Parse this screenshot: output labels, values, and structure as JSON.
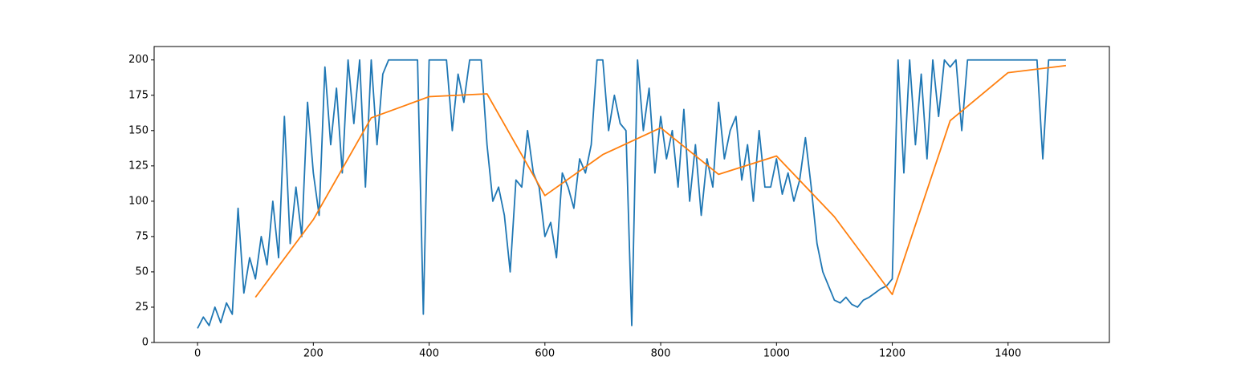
{
  "chart_data": {
    "type": "line",
    "xlim": [
      -75,
      1575
    ],
    "xticks": [
      0,
      200,
      400,
      600,
      800,
      1000,
      1200,
      1400
    ],
    "ylim": [
      0,
      209.5
    ],
    "yticks": [
      0,
      25,
      50,
      75,
      100,
      125,
      150,
      175,
      200
    ],
    "series": [
      {
        "color": "#1f77b4",
        "x": [
          0,
          10,
          20,
          30,
          40,
          50,
          60,
          70,
          80,
          90,
          100,
          110,
          120,
          130,
          140,
          150,
          160,
          170,
          180,
          190,
          200,
          210,
          220,
          230,
          240,
          250,
          260,
          270,
          280,
          290,
          300,
          310,
          320,
          330,
          340,
          350,
          360,
          370,
          380,
          390,
          400,
          410,
          420,
          430,
          440,
          450,
          460,
          470,
          480,
          490,
          500,
          510,
          520,
          530,
          540,
          550,
          560,
          570,
          580,
          590,
          600,
          610,
          620,
          630,
          640,
          650,
          660,
          670,
          680,
          690,
          700,
          710,
          720,
          730,
          740,
          750,
          760,
          770,
          780,
          790,
          800,
          810,
          820,
          830,
          840,
          850,
          860,
          870,
          880,
          890,
          900,
          910,
          920,
          930,
          940,
          950,
          960,
          970,
          980,
          990,
          1000,
          1010,
          1020,
          1030,
          1040,
          1050,
          1060,
          1070,
          1080,
          1090,
          1100,
          1110,
          1120,
          1130,
          1140,
          1150,
          1160,
          1170,
          1180,
          1190,
          1200,
          1210,
          1220,
          1230,
          1240,
          1250,
          1260,
          1270,
          1280,
          1290,
          1300,
          1310,
          1320,
          1330,
          1340,
          1350,
          1360,
          1370,
          1380,
          1390,
          1400,
          1410,
          1420,
          1430,
          1440,
          1450,
          1460,
          1470,
          1480,
          1490,
          1500
        ],
        "values": [
          10,
          18,
          12,
          25,
          14,
          28,
          20,
          95,
          35,
          60,
          45,
          75,
          55,
          100,
          60,
          160,
          70,
          110,
          75,
          170,
          120,
          90,
          195,
          140,
          180,
          120,
          200,
          155,
          200,
          110,
          200,
          140,
          190,
          200,
          200,
          200,
          200,
          200,
          200,
          20,
          200,
          200,
          200,
          200,
          150,
          190,
          170,
          200,
          200,
          200,
          140,
          100,
          110,
          90,
          50,
          115,
          110,
          150,
          120,
          110,
          75,
          85,
          60,
          120,
          110,
          95,
          130,
          120,
          140,
          200,
          200,
          150,
          175,
          155,
          150,
          12,
          200,
          150,
          180,
          120,
          160,
          130,
          150,
          110,
          165,
          100,
          140,
          90,
          130,
          110,
          170,
          130,
          150,
          160,
          115,
          140,
          100,
          150,
          110,
          110,
          130,
          105,
          120,
          100,
          115,
          145,
          110,
          70,
          50,
          40,
          30,
          28,
          32,
          27,
          25,
          30,
          32,
          35,
          38,
          40,
          45,
          200,
          120,
          200,
          140,
          190,
          130,
          200,
          160,
          200,
          195,
          200,
          150,
          200,
          200,
          200,
          200,
          200,
          200,
          200,
          200,
          200,
          200,
          200,
          200,
          200,
          130,
          200,
          200,
          200,
          200
        ]
      },
      {
        "color": "#ff7f0e",
        "x": [
          100,
          200,
          300,
          400,
          500,
          600,
          700,
          800,
          900,
          1000,
          1100,
          1200,
          1300,
          1400,
          1500
        ],
        "values": [
          32,
          87,
          159,
          174,
          176,
          104,
          133,
          152,
          119,
          132,
          89,
          34,
          157,
          191,
          196
        ]
      }
    ]
  }
}
